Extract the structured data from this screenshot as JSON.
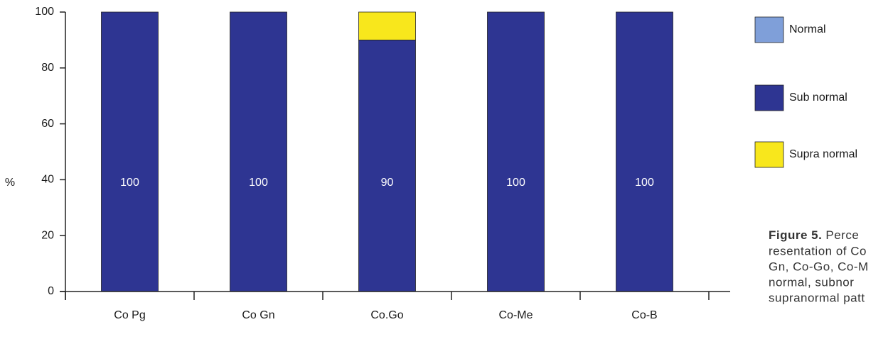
{
  "chart_data": {
    "type": "stacked_bar",
    "y_label": "%",
    "categories": [
      "Co Pg",
      "Co Gn",
      "Co.Go",
      "Co-Me",
      "Co-B"
    ],
    "series": [
      {
        "name": "Normal",
        "color": "#7f9fd9",
        "values": [
          0,
          0,
          0,
          0,
          0
        ]
      },
      {
        "name": "Sub normal",
        "color": "#2e3592",
        "values": [
          100,
          100,
          90,
          100,
          100
        ]
      },
      {
        "name": "Supra normal",
        "color": "#f8e71c",
        "values": [
          0,
          0,
          10,
          0,
          0
        ]
      }
    ],
    "ylim": [
      0,
      100
    ],
    "yticks": [
      0,
      20,
      40,
      60,
      80,
      100
    ],
    "caption_label": "Figure 5.",
    "caption_lines": [
      "Perce",
      "resentation of Co",
      "Gn, Co-Go, Co-M",
      "normal, subnor",
      "supranormal patt"
    ]
  }
}
